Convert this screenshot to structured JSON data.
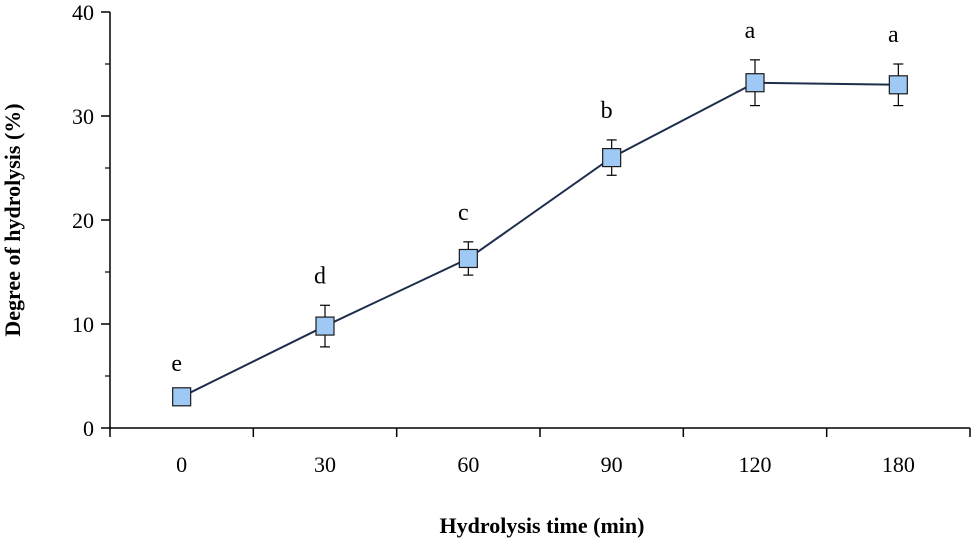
{
  "chart_data": {
    "type": "line",
    "title": "",
    "xlabel": "Hydrolysis time (min)",
    "ylabel": "Degree of hydrolysis (%)",
    "categories": [
      "0",
      "30",
      "60",
      "90",
      "120",
      "180"
    ],
    "ylim": [
      0,
      40
    ],
    "yticks": [
      "0",
      "10",
      "20",
      "30",
      "40"
    ],
    "grid": false,
    "legend": "none",
    "series": [
      {
        "values": [
          3.0,
          9.8,
          16.3,
          26.0,
          33.2,
          33.0
        ],
        "error": [
          0.0,
          2.0,
          1.6,
          1.7,
          2.2,
          2.0
        ],
        "sig_labels": [
          "e",
          "d",
          "c",
          "b",
          "a",
          "a"
        ],
        "line_color": "#1f2d4d",
        "marker_fill": "#9ec9f5",
        "marker_edge": "#1a1a1a"
      }
    ]
  }
}
